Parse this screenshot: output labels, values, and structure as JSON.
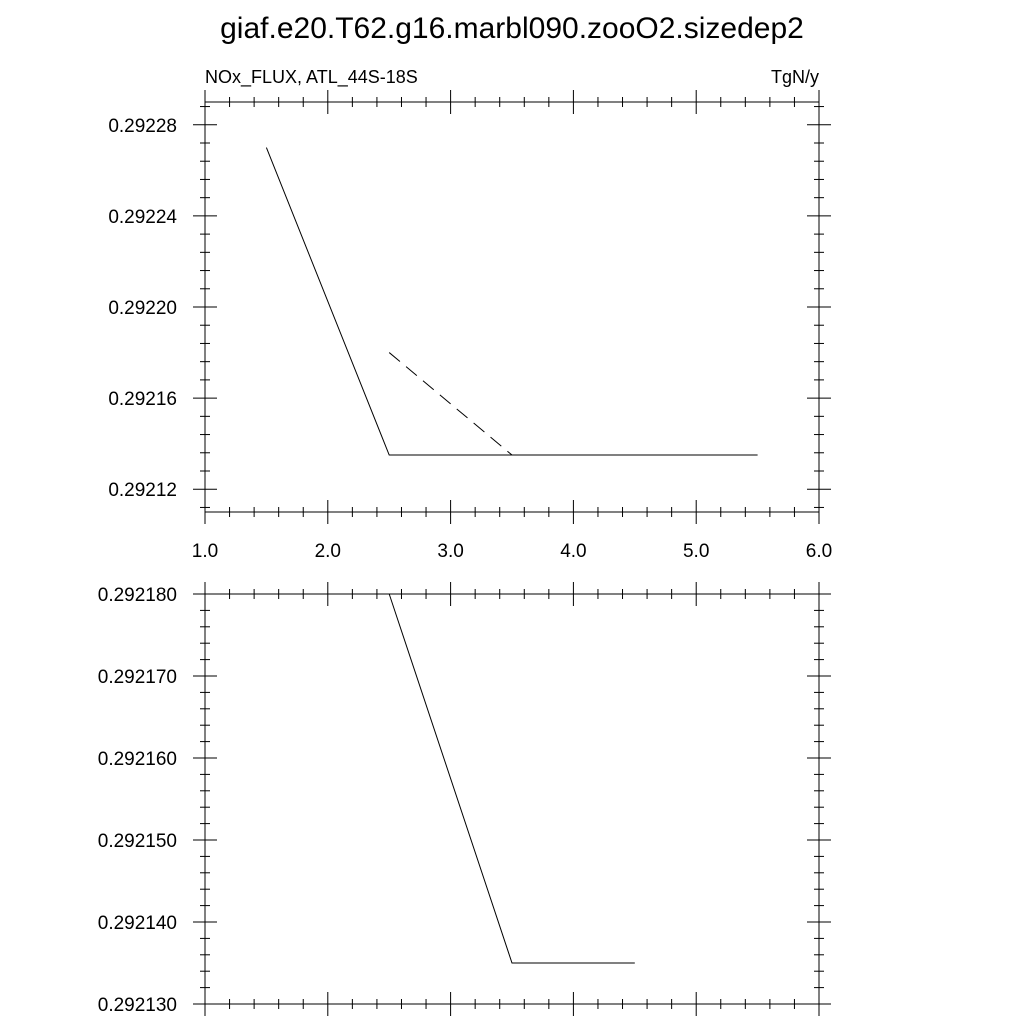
{
  "figure": {
    "title": "giaf.e20.T62.g16.marbl090.zooO2.sizedep2"
  },
  "chart_data": [
    {
      "type": "line",
      "left_label": "NOx_FLUX, ATL_44S-18S",
      "right_label": "TgN/y",
      "xlim": [
        1.0,
        6.0
      ],
      "ylim": [
        0.29211,
        0.29229
      ],
      "x_ticks": [
        1.0,
        2.0,
        3.0,
        4.0,
        5.0,
        6.0
      ],
      "x_tick_labels": [
        "1.0",
        "2.0",
        "3.0",
        "4.0",
        "5.0",
        "6.0"
      ],
      "y_ticks": [
        0.29212,
        0.29216,
        0.2922,
        0.29224,
        0.29228
      ],
      "y_tick_labels": [
        "0.29212",
        "0.29216",
        "0.29220",
        "0.29224",
        "0.29228"
      ],
      "grid": false,
      "series": [
        {
          "style": "solid",
          "color": "#000000",
          "x": [
            1.5,
            2.5,
            3.5,
            4.5,
            5.5
          ],
          "y": [
            0.29227,
            0.292135,
            0.292135,
            0.292135,
            0.292135
          ]
        },
        {
          "style": "dashed",
          "color": "#000000",
          "x": [
            2.5,
            3.5,
            4.5
          ],
          "y": [
            0.29218,
            0.292135,
            0.292135
          ]
        }
      ]
    },
    {
      "type": "line",
      "xlim": [
        1.0,
        6.0
      ],
      "ylim": [
        0.29213,
        0.29218
      ],
      "x_ticks": [
        1.0,
        2.0,
        3.0,
        4.0,
        5.0,
        6.0
      ],
      "y_ticks": [
        0.29213,
        0.29214,
        0.29215,
        0.29216,
        0.29217,
        0.29218
      ],
      "y_tick_labels": [
        "0.292130",
        "0.292140",
        "0.292150",
        "0.292160",
        "0.292170",
        "0.292180"
      ],
      "grid": false,
      "series": [
        {
          "style": "solid",
          "color": "#000000",
          "x": [
            2.5,
            3.5,
            4.5
          ],
          "y": [
            0.29218,
            0.292135,
            0.292135
          ]
        }
      ]
    }
  ]
}
